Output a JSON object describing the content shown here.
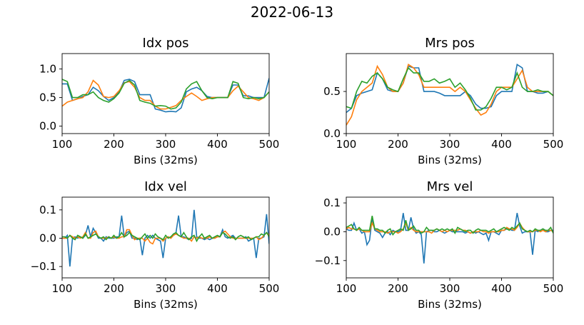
{
  "suptitle": "2022-06-13",
  "colors": {
    "series_1": "#1f77b4",
    "series_2": "#ff7f0e",
    "series_3": "#2ca02c"
  },
  "chart_data": [
    {
      "type": "line",
      "title": "Idx pos",
      "xlabel": "Bins (32ms)",
      "ylabel": "",
      "xlim": [
        100,
        500
      ],
      "ylim": [
        -0.13,
        1.27
      ],
      "xticks": [
        100,
        200,
        300,
        400,
        500
      ],
      "yticks": [
        0.0,
        0.5,
        1.0
      ],
      "ytick_labels": [
        "0.0",
        "0.5",
        "1.0"
      ],
      "grid": false,
      "x": [
        100,
        110,
        120,
        130,
        140,
        150,
        160,
        170,
        180,
        190,
        200,
        210,
        220,
        230,
        240,
        250,
        260,
        270,
        280,
        290,
        300,
        310,
        320,
        330,
        340,
        350,
        360,
        370,
        380,
        390,
        400,
        410,
        420,
        430,
        440,
        450,
        460,
        470,
        480,
        490,
        500
      ],
      "series": [
        {
          "color": "#1f77b4",
          "values": [
            0.74,
            0.74,
            0.45,
            0.48,
            0.52,
            0.55,
            0.68,
            0.62,
            0.52,
            0.45,
            0.5,
            0.6,
            0.8,
            0.82,
            0.78,
            0.55,
            0.55,
            0.55,
            0.3,
            0.28,
            0.25,
            0.26,
            0.25,
            0.32,
            0.6,
            0.65,
            0.68,
            0.62,
            0.52,
            0.5,
            0.5,
            0.5,
            0.5,
            0.72,
            0.72,
            0.53,
            0.53,
            0.5,
            0.5,
            0.5,
            0.84
          ]
        },
        {
          "color": "#ff7f0e",
          "values": [
            0.35,
            0.42,
            0.45,
            0.48,
            0.5,
            0.6,
            0.8,
            0.72,
            0.52,
            0.5,
            0.52,
            0.62,
            0.76,
            0.78,
            0.68,
            0.5,
            0.45,
            0.45,
            0.35,
            0.3,
            0.3,
            0.33,
            0.36,
            0.45,
            0.52,
            0.58,
            0.52,
            0.45,
            0.48,
            0.5,
            0.5,
            0.5,
            0.5,
            0.62,
            0.7,
            0.6,
            0.5,
            0.48,
            0.45,
            0.5,
            0.6
          ]
        },
        {
          "color": "#2ca02c",
          "values": [
            0.82,
            0.78,
            0.5,
            0.5,
            0.55,
            0.55,
            0.6,
            0.5,
            0.45,
            0.42,
            0.48,
            0.58,
            0.75,
            0.8,
            0.72,
            0.45,
            0.42,
            0.4,
            0.35,
            0.36,
            0.35,
            0.3,
            0.32,
            0.42,
            0.65,
            0.74,
            0.78,
            0.62,
            0.5,
            0.48,
            0.5,
            0.5,
            0.5,
            0.78,
            0.75,
            0.5,
            0.48,
            0.5,
            0.48,
            0.5,
            0.6
          ]
        }
      ]
    },
    {
      "type": "line",
      "title": "Mrs pos",
      "xlabel": "Bins (32ms)",
      "ylabel": "",
      "xlim": [
        100,
        500
      ],
      "ylim": [
        0.0,
        0.95
      ],
      "xticks": [
        100,
        200,
        300,
        400,
        500
      ],
      "yticks": [
        0.0,
        0.5
      ],
      "ytick_labels": [
        "0.0",
        "0.5"
      ],
      "grid": false,
      "x": [
        100,
        110,
        120,
        130,
        140,
        150,
        160,
        170,
        180,
        190,
        200,
        210,
        220,
        230,
        240,
        250,
        260,
        270,
        280,
        290,
        300,
        310,
        320,
        330,
        340,
        350,
        360,
        370,
        380,
        390,
        400,
        410,
        420,
        430,
        440,
        450,
        460,
        470,
        480,
        490,
        500
      ],
      "series": [
        {
          "color": "#1f77b4",
          "values": [
            0.25,
            0.3,
            0.45,
            0.48,
            0.5,
            0.52,
            0.72,
            0.65,
            0.52,
            0.5,
            0.5,
            0.6,
            0.8,
            0.78,
            0.78,
            0.5,
            0.5,
            0.5,
            0.48,
            0.45,
            0.45,
            0.45,
            0.45,
            0.5,
            0.45,
            0.35,
            0.3,
            0.3,
            0.32,
            0.45,
            0.5,
            0.5,
            0.5,
            0.82,
            0.78,
            0.5,
            0.5,
            0.48,
            0.48,
            0.5,
            0.45
          ]
        },
        {
          "color": "#ff7f0e",
          "values": [
            0.1,
            0.2,
            0.4,
            0.5,
            0.55,
            0.6,
            0.8,
            0.7,
            0.55,
            0.5,
            0.5,
            0.6,
            0.82,
            0.78,
            0.7,
            0.55,
            0.55,
            0.55,
            0.55,
            0.55,
            0.55,
            0.5,
            0.55,
            0.5,
            0.4,
            0.3,
            0.22,
            0.25,
            0.35,
            0.5,
            0.55,
            0.55,
            0.55,
            0.65,
            0.75,
            0.55,
            0.5,
            0.5,
            0.5,
            0.5,
            0.45
          ]
        },
        {
          "color": "#2ca02c",
          "values": [
            0.32,
            0.3,
            0.5,
            0.62,
            0.6,
            0.68,
            0.72,
            0.65,
            0.55,
            0.52,
            0.5,
            0.65,
            0.78,
            0.72,
            0.72,
            0.62,
            0.62,
            0.65,
            0.6,
            0.62,
            0.65,
            0.55,
            0.6,
            0.52,
            0.42,
            0.28,
            0.28,
            0.32,
            0.42,
            0.55,
            0.55,
            0.52,
            0.55,
            0.72,
            0.55,
            0.5,
            0.5,
            0.52,
            0.5,
            0.5,
            0.45
          ]
        }
      ]
    },
    {
      "type": "line",
      "title": "Idx vel",
      "xlabel": "Bins (32ms)",
      "ylabel": "",
      "xlim": [
        100,
        500
      ],
      "ylim": [
        -0.14,
        0.145
      ],
      "xticks": [
        100,
        200,
        300,
        400,
        500
      ],
      "yticks": [
        -0.1,
        0.0,
        0.1
      ],
      "ytick_labels": [
        "−0.1",
        "0.0",
        "0.1"
      ],
      "grid": false,
      "x": [
        100,
        105,
        110,
        115,
        120,
        125,
        130,
        135,
        140,
        145,
        150,
        155,
        160,
        165,
        170,
        175,
        180,
        185,
        190,
        195,
        200,
        205,
        210,
        215,
        220,
        225,
        230,
        235,
        240,
        245,
        250,
        255,
        260,
        265,
        270,
        275,
        280,
        285,
        290,
        295,
        300,
        305,
        310,
        315,
        320,
        325,
        330,
        335,
        340,
        345,
        350,
        355,
        360,
        365,
        370,
        375,
        380,
        385,
        390,
        395,
        400,
        405,
        410,
        415,
        420,
        425,
        430,
        435,
        440,
        445,
        450,
        455,
        460,
        465,
        470,
        475,
        480,
        485,
        490,
        495,
        500
      ],
      "series": [
        {
          "color": "#1f77b4",
          "values": [
            0,
            0,
            0.01,
            -0.1,
            0,
            0.005,
            0,
            0.005,
            0,
            0.01,
            0.045,
            0.005,
            0.035,
            0.02,
            0,
            0,
            -0.01,
            0.005,
            0,
            0,
            0,
            0.005,
            0.005,
            0.08,
            0.005,
            0.02,
            0.025,
            0,
            0,
            -0.005,
            0,
            -0.06,
            0,
            0.01,
            0,
            0.01,
            0,
            -0.005,
            -0.01,
            -0.07,
            0,
            0.005,
            0,
            0.01,
            0.02,
            0.08,
            0.005,
            0.005,
            0,
            -0.005,
            0,
            0.1,
            0.005,
            0,
            0,
            -0.005,
            0,
            -0.005,
            0,
            0,
            0.005,
            0.005,
            0.03,
            0.005,
            0,
            0.005,
            0.01,
            0,
            0,
            0,
            0,
            0.005,
            -0.01,
            -0.005,
            0,
            -0.07,
            0,
            0,
            0.005,
            0.085,
            -0.02
          ]
        },
        {
          "color": "#ff7f0e",
          "values": [
            0,
            0,
            0,
            0.01,
            0.005,
            0,
            0.005,
            0,
            0.005,
            0.02,
            0,
            0,
            0.02,
            0.025,
            0.005,
            0,
            0,
            0,
            0.005,
            0,
            0.005,
            0,
            0,
            0.005,
            0.005,
            0.03,
            0.03,
            0.01,
            -0.005,
            0,
            0,
            0,
            -0.01,
            0,
            -0.015,
            -0.02,
            0,
            0,
            0,
            -0.01,
            0,
            0.005,
            0,
            0.01,
            0.015,
            0.01,
            0.005,
            0,
            0,
            0,
            -0.01,
            0.005,
            0,
            0.005,
            0,
            0,
            0,
            0.005,
            0,
            0,
            0.005,
            0.005,
            0.02,
            0.025,
            0.015,
            0.005,
            0,
            0,
            0,
            0,
            0,
            0,
            0,
            0,
            0,
            0.005,
            -0.005,
            0,
            0.01,
            0.02,
            0.01
          ]
        },
        {
          "color": "#2ca02c",
          "values": [
            0.005,
            0.005,
            0,
            0.01,
            0,
            -0.005,
            0.01,
            0.005,
            0,
            0.015,
            0,
            0.005,
            0.01,
            0.015,
            0.005,
            0,
            0.005,
            -0.005,
            0.005,
            0,
            0.01,
            0,
            0.005,
            0.02,
            0.005,
            0.01,
            0.02,
            0.01,
            0.005,
            0,
            -0.005,
            0.005,
            0.015,
            0,
            0.01,
            0,
            0.015,
            0.005,
            0,
            -0.005,
            0.01,
            0,
            0.005,
            0.015,
            0.02,
            0.01,
            0.005,
            0.02,
            0.005,
            -0.005,
            0.005,
            0.01,
            -0.01,
            0.005,
            0.015,
            0,
            0.005,
            0.01,
            0,
            0.005,
            0.01,
            0.005,
            0.02,
            0.015,
            0.005,
            0,
            0.005,
            -0.005,
            0.005,
            0.01,
            0.005,
            0,
            0.005,
            -0.005,
            0,
            0.005,
            0.005,
            0.015,
            0.01,
            0.02,
            0.005
          ]
        }
      ]
    },
    {
      "type": "line",
      "title": "Mrs vel",
      "xlabel": "Bins (32ms)",
      "ylabel": "",
      "xlim": [
        100,
        500
      ],
      "ylim": [
        -0.16,
        0.12
      ],
      "xticks": [
        100,
        200,
        300,
        400,
        500
      ],
      "yticks": [
        -0.1,
        0.0,
        0.1
      ],
      "ytick_labels": [
        "−0.1",
        "0.0",
        "0.1"
      ],
      "grid": false,
      "x": [
        100,
        105,
        110,
        115,
        120,
        125,
        130,
        135,
        140,
        145,
        150,
        155,
        160,
        165,
        170,
        175,
        180,
        185,
        190,
        195,
        200,
        205,
        210,
        215,
        220,
        225,
        230,
        235,
        240,
        245,
        250,
        255,
        260,
        265,
        270,
        275,
        280,
        285,
        290,
        295,
        300,
        305,
        310,
        315,
        320,
        325,
        330,
        335,
        340,
        345,
        350,
        355,
        360,
        365,
        370,
        375,
        380,
        385,
        390,
        395,
        400,
        405,
        410,
        415,
        420,
        425,
        430,
        435,
        440,
        445,
        450,
        455,
        460,
        465,
        470,
        475,
        480,
        485,
        490,
        495,
        500
      ],
      "series": [
        {
          "color": "#1f77b4",
          "values": [
            0.01,
            0.005,
            0.005,
            0.03,
            0.005,
            0.01,
            -0.005,
            0,
            -0.045,
            -0.03,
            0.045,
            0.005,
            0,
            -0.005,
            -0.02,
            -0.005,
            0,
            -0.01,
            0.005,
            0,
            0,
            0.005,
            0.065,
            0.005,
            0.005,
            0.05,
            0.01,
            -0.005,
            0,
            -0.01,
            -0.11,
            0,
            0.005,
            0.005,
            0,
            0,
            0.005,
            0,
            -0.005,
            0,
            0.005,
            0,
            0,
            0,
            0,
            0,
            -0.005,
            0,
            -0.005,
            0,
            -0.005,
            0,
            -0.005,
            -0.01,
            -0.005,
            -0.03,
            0,
            0,
            -0.005,
            -0.01,
            0.005,
            0.005,
            0.01,
            0.01,
            0.005,
            0.005,
            0.065,
            0.02,
            -0.005,
            0,
            0,
            0,
            -0.08,
            0.005,
            0,
            0.005,
            0.01,
            0,
            0,
            0.005,
            0.005
          ]
        },
        {
          "color": "#ff7f0e",
          "values": [
            0.01,
            0.015,
            0.01,
            0.01,
            0.005,
            0.01,
            0.005,
            0,
            0,
            0,
            0.03,
            0.01,
            0.005,
            0,
            0,
            0,
            -0.005,
            0,
            0,
            0,
            -0.005,
            0,
            0.01,
            0.03,
            0.005,
            0.015,
            0.005,
            0,
            0,
            0,
            0,
            0,
            0,
            -0.005,
            0.005,
            0.01,
            0.005,
            0,
            0.005,
            0,
            0.005,
            0.005,
            0.005,
            0.005,
            0.01,
            0.005,
            0.005,
            0,
            -0.005,
            0,
            0,
            0,
            0.005,
            0,
            0,
            -0.005,
            0,
            0,
            0,
            0,
            0.005,
            0.005,
            0.015,
            0.01,
            0.01,
            0.005,
            0.015,
            0.03,
            0.015,
            0.005,
            0,
            0,
            0,
            0.005,
            0.005,
            0,
            0.005,
            0,
            0.005,
            0.005,
            0
          ]
        },
        {
          "color": "#2ca02c",
          "values": [
            0.015,
            0.02,
            0.025,
            0.01,
            0.005,
            0.015,
            0.005,
            0.005,
            0.005,
            0.005,
            0.055,
            0.01,
            0.01,
            0.005,
            0.005,
            -0.005,
            0.005,
            0.01,
            -0.01,
            0,
            0.005,
            0.01,
            0.005,
            0.04,
            0.005,
            0.01,
            0.02,
            0.005,
            0.005,
            -0.005,
            0,
            0.015,
            0.005,
            0.005,
            0.005,
            0.01,
            0.005,
            0.01,
            0.005,
            0.01,
            0.005,
            0.01,
            -0.005,
            0.015,
            0.01,
            0.005,
            0,
            0.005,
            0.005,
            -0.005,
            0.005,
            0.01,
            0.005,
            0.005,
            0.005,
            0,
            0.005,
            0.01,
            0,
            0.005,
            0.01,
            0.015,
            0.01,
            0.005,
            0.015,
            0.01,
            0.02,
            0.03,
            0.01,
            0.005,
            0,
            0.005,
            0,
            0.01,
            0.005,
            0.005,
            0.01,
            0.005,
            0.005,
            0.015,
            -0.005
          ]
        }
      ]
    }
  ]
}
